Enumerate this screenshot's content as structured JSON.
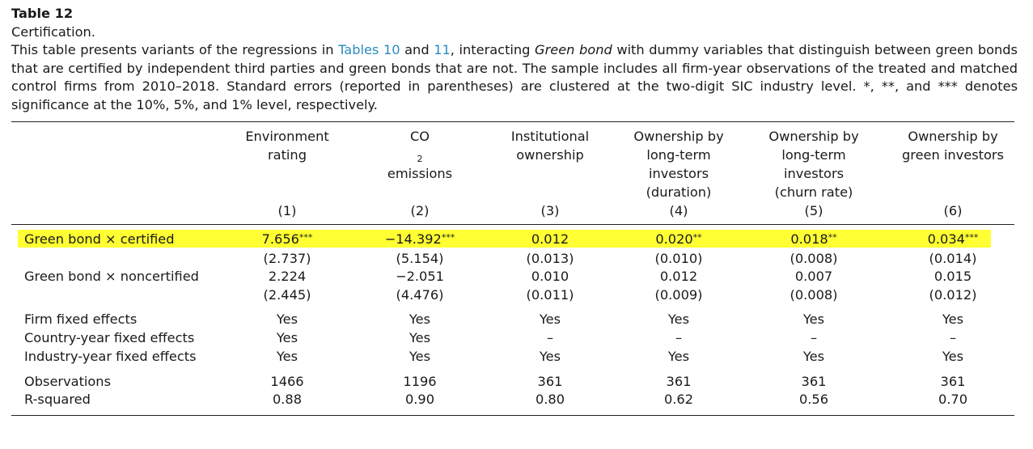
{
  "caption": {
    "label": "Table 12",
    "title": "Certification.",
    "desc_part1": "This table presents variants of the regressions in ",
    "link1": "Tables 10",
    "desc_part2": " and ",
    "link2": "11",
    "desc_part3": ", interacting ",
    "desc_italic": "Green bond",
    "desc_part4": " with dummy variables that distinguish between green bonds that are certified by independent third parties and green bonds that are not. The sample includes all firm-year observations of the treated and matched control firms from 2010–2018. Standard errors (reported in parentheses) are clustered at the two-digit SIC industry level. *, **, and *** denotes significance at the 10%, 5%, and 1% level, respectively."
  },
  "columns": [
    {
      "lines": [
        "Environment",
        "rating"
      ],
      "num": "(1)"
    },
    {
      "lines_co2": {
        "pre": "CO",
        "sub": "2",
        "post": " emissions"
      },
      "num": "(2)"
    },
    {
      "lines": [
        "Institutional",
        "ownership"
      ],
      "num": "(3)"
    },
    {
      "lines": [
        "Ownership by",
        "long-term",
        "investors",
        "(duration)"
      ],
      "num": "(4)"
    },
    {
      "lines": [
        "Ownership by",
        "long-term",
        "investors",
        "(churn rate)"
      ],
      "num": "(5)"
    },
    {
      "lines": [
        "Ownership by",
        "green investors"
      ],
      "num": "(6)"
    }
  ],
  "rows": {
    "certified": {
      "label": "Green bond × certified",
      "coef": [
        "7.656",
        "−14.392",
        "0.012",
        "0.020",
        "0.018",
        "0.034"
      ],
      "stars": [
        "***",
        "***",
        "",
        "**",
        "**",
        "***"
      ],
      "se": [
        "(2.737)",
        "(5.154)",
        "(0.013)",
        "(0.010)",
        "(0.008)",
        "(0.014)"
      ]
    },
    "noncertified": {
      "label": "Green bond × noncertified",
      "coef": [
        "2.224",
        "−2.051",
        "0.010",
        "0.012",
        "0.007",
        "0.015"
      ],
      "se": [
        "(2.445)",
        "(4.476)",
        "(0.011)",
        "(0.009)",
        "(0.008)",
        "(0.012)"
      ]
    },
    "firm_fe": {
      "label": "Firm fixed effects",
      "values": [
        "Yes",
        "Yes",
        "Yes",
        "Yes",
        "Yes",
        "Yes"
      ]
    },
    "country_year_fe": {
      "label": "Country-year fixed effects",
      "values": [
        "Yes",
        "Yes",
        "–",
        "–",
        "–",
        "–"
      ]
    },
    "industry_year_fe": {
      "label": "Industry-year fixed effects",
      "values": [
        "Yes",
        "Yes",
        "Yes",
        "Yes",
        "Yes",
        "Yes"
      ]
    },
    "observations": {
      "label": "Observations",
      "values": [
        "1466",
        "1196",
        "361",
        "361",
        "361",
        "361"
      ]
    },
    "r_squared": {
      "label": "R-squared",
      "values": [
        "0.88",
        "0.90",
        "0.80",
        "0.62",
        "0.56",
        "0.70"
      ]
    }
  },
  "colors": {
    "highlight": "#ffff33",
    "link": "#2a8bbf"
  }
}
